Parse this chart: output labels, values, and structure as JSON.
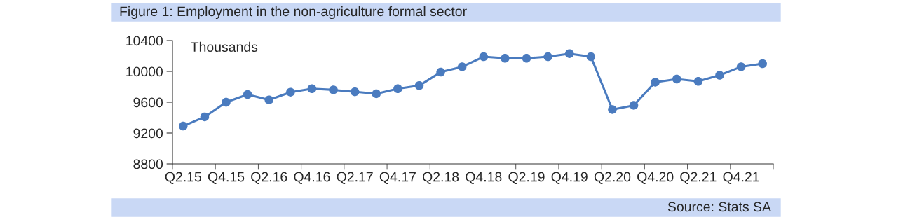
{
  "chart_data": {
    "type": "line",
    "title": "Figure 1: Employment in the non-agriculture formal sector",
    "ylabel": "Thousands",
    "annotations": [
      "Source: Stats SA"
    ],
    "categories": [
      "Q2.15",
      null,
      "Q4.15",
      null,
      "Q2.16",
      null,
      "Q4.16",
      null,
      "Q2.17",
      null,
      "Q4.17",
      null,
      "Q2.18",
      null,
      "Q4.18",
      null,
      "Q2.19",
      null,
      "Q4.19",
      null,
      "Q2.20",
      null,
      "Q4.20",
      null,
      "Q2.21",
      null,
      "Q4.21",
      null
    ],
    "series": [
      {
        "color": "#4a7bbf",
        "values": [
          9290,
          9410,
          9600,
          9700,
          9630,
          9730,
          9775,
          9760,
          9735,
          9710,
          9775,
          9815,
          9990,
          10060,
          10190,
          10170,
          10170,
          10190,
          10230,
          10190,
          9505,
          9560,
          9860,
          9900,
          9870,
          9950,
          10060,
          10100
        ]
      }
    ],
    "ylim": [
      8800,
      10400
    ],
    "yticks": [
      8800,
      9200,
      9600,
      10000,
      10400
    ],
    "grid": false,
    "legend": false,
    "marker": "circle",
    "line_style": "solid"
  }
}
